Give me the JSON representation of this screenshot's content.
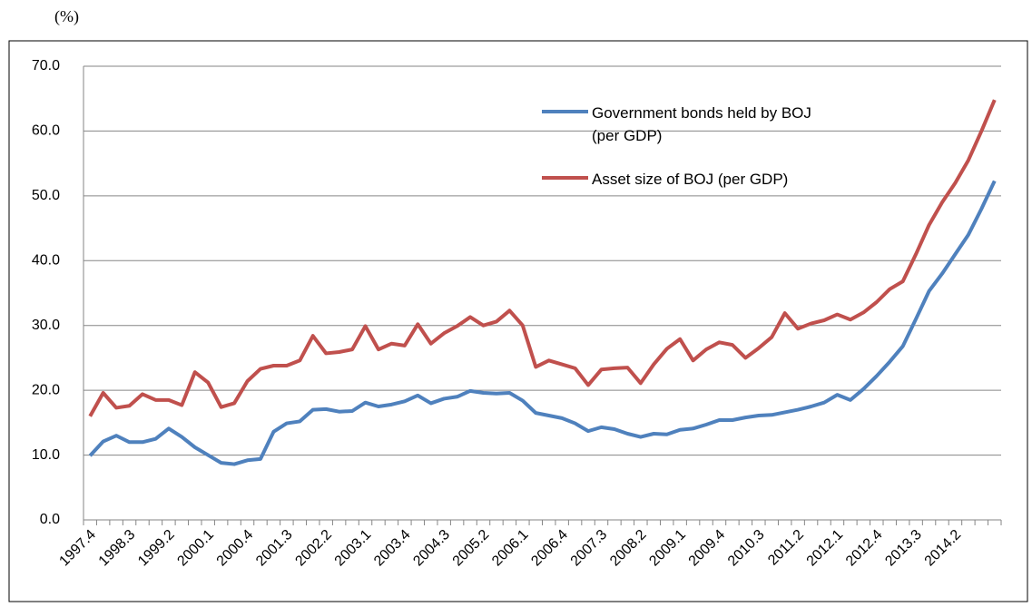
{
  "chart_data": {
    "type": "line",
    "y_label": "(%)",
    "categories": [
      "1997.4",
      null,
      null,
      "1998.3",
      null,
      null,
      "1999.2",
      null,
      null,
      "2000.1",
      null,
      null,
      "2000.4",
      null,
      null,
      "2001.3",
      null,
      null,
      "2002.2",
      null,
      null,
      "2003.1",
      null,
      null,
      "2003.4",
      null,
      null,
      "2004.3",
      null,
      null,
      "2005.2",
      null,
      null,
      "2006.1",
      null,
      null,
      "2006.4",
      null,
      null,
      "2007.3",
      null,
      null,
      "2008.2",
      null,
      null,
      "2009.1",
      null,
      null,
      "2009.4",
      null,
      null,
      "2010.3",
      null,
      null,
      "2011.2",
      null,
      null,
      "2012.1",
      null,
      null,
      "2012.4",
      null,
      null,
      "2013.3",
      null,
      null,
      "2014.2",
      null,
      null,
      null
    ],
    "series": [
      {
        "name": "Government bonds held by BOJ (per GDP)",
        "color": "#4f81bd",
        "values": [
          9.9,
          12.1,
          13.0,
          12.0,
          12.0,
          12.5,
          14.1,
          12.8,
          11.2,
          10.0,
          8.8,
          8.6,
          9.2,
          9.4,
          13.6,
          14.9,
          15.2,
          17.0,
          17.1,
          16.7,
          16.8,
          18.1,
          17.5,
          17.8,
          18.3,
          19.2,
          18.0,
          18.7,
          19.0,
          19.9,
          19.6,
          19.5,
          19.6,
          18.4,
          16.5,
          16.1,
          15.7,
          14.9,
          13.7,
          14.3,
          14.0,
          13.3,
          12.8,
          13.3,
          13.2,
          13.9,
          14.1,
          14.7,
          15.4,
          15.4,
          15.8,
          16.1,
          16.2,
          16.6,
          17.0,
          17.5,
          18.1,
          19.3,
          18.5,
          20.2,
          22.2,
          24.4,
          26.8,
          31.0,
          35.3,
          38.0,
          41.0,
          44.0,
          48.0,
          52.3
        ]
      },
      {
        "name": "Asset size of BOJ (per GDP)",
        "color": "#c0504d",
        "values": [
          16.0,
          19.6,
          17.3,
          17.6,
          19.4,
          18.5,
          18.5,
          17.7,
          22.8,
          21.2,
          17.4,
          18.0,
          21.4,
          23.3,
          23.8,
          23.8,
          24.6,
          28.4,
          25.7,
          25.9,
          26.3,
          29.9,
          26.3,
          27.2,
          26.9,
          30.2,
          27.2,
          28.8,
          29.9,
          31.3,
          30.0,
          30.6,
          32.3,
          30.0,
          23.6,
          24.6,
          24.0,
          23.4,
          20.8,
          23.2,
          23.4,
          23.5,
          21.1,
          24.0,
          26.4,
          27.9,
          24.6,
          26.3,
          27.4,
          27.0,
          25.0,
          26.5,
          28.2,
          31.9,
          29.5,
          30.3,
          30.8,
          31.7,
          30.9,
          32.0,
          33.6,
          35.6,
          36.8,
          41.0,
          45.5,
          49.0,
          52.0,
          55.5,
          60.0,
          64.8
        ]
      }
    ],
    "ylim": [
      0,
      70
    ],
    "yticks": [
      {
        "value": 0,
        "label": "0.0"
      },
      {
        "value": 10,
        "label": "10.0"
      },
      {
        "value": 20,
        "label": "20.0"
      },
      {
        "value": 30,
        "label": "30.0"
      },
      {
        "value": 40,
        "label": "40.0"
      },
      {
        "value": 50,
        "label": "50.0"
      },
      {
        "value": 60,
        "label": "60.0"
      },
      {
        "value": 70,
        "label": "70.0"
      }
    ],
    "grid": true
  }
}
